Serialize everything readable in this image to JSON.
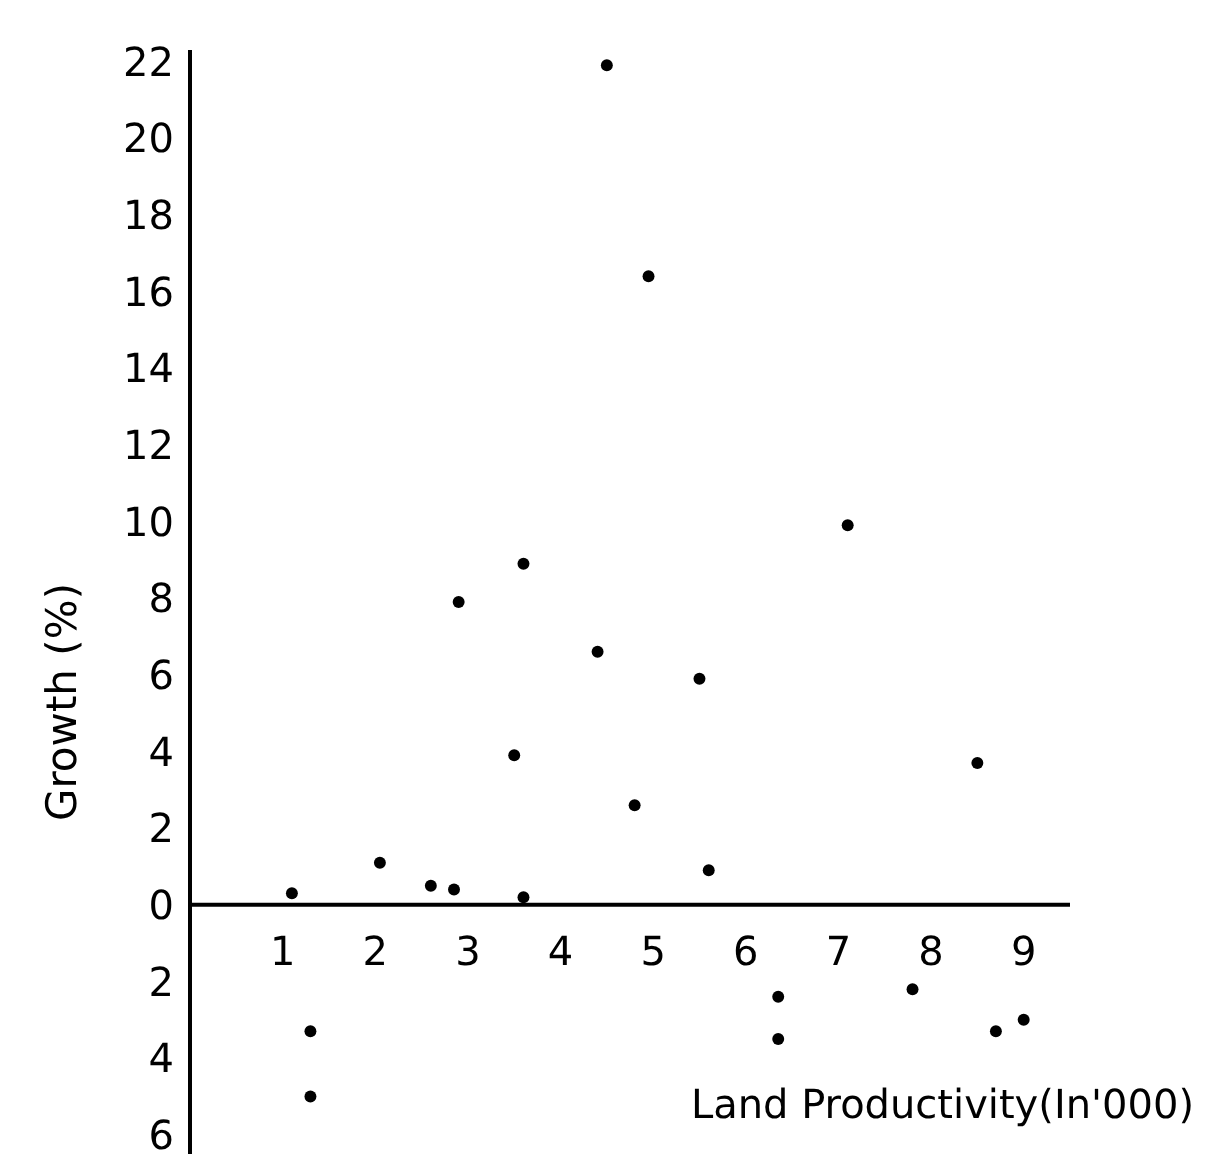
{
  "chart_data": {
    "type": "scatter",
    "xlabel": "Land Productivity(In'000)",
    "ylabel": "Growth (%)",
    "x": [
      1.1,
      1.3,
      1.3,
      2.05,
      2.6,
      2.85,
      2.9,
      3.5,
      3.6,
      3.6,
      4.4,
      4.5,
      4.8,
      4.95,
      5.5,
      5.6,
      6.35,
      6.35,
      7.1,
      7.8,
      8.5,
      8.7,
      9.0
    ],
    "series": [
      {
        "color": "#000000",
        "values": [
          0.3,
          -3.3,
          -5.0,
          1.1,
          0.5,
          0.4,
          7.9,
          3.9,
          8.9,
          0.2,
          6.6,
          21.9,
          2.6,
          16.4,
          5.9,
          0.9,
          -2.4,
          -3.5,
          9.9,
          -2.2,
          3.7,
          -3.3,
          -3.0
        ]
      }
    ],
    "xlim": [
      0,
      9.5
    ],
    "xticks": [
      1,
      2,
      3,
      4,
      5,
      6,
      7,
      8,
      9
    ],
    "ylim": [
      -6.5,
      22.3
    ],
    "yticks": [
      {
        "value": -6,
        "label": "6"
      },
      {
        "value": -4,
        "label": "4"
      },
      {
        "value": -2,
        "label": "2"
      },
      0,
      2,
      4,
      6,
      8,
      10,
      12,
      14,
      16,
      18,
      20,
      22
    ],
    "marker": "circle"
  }
}
